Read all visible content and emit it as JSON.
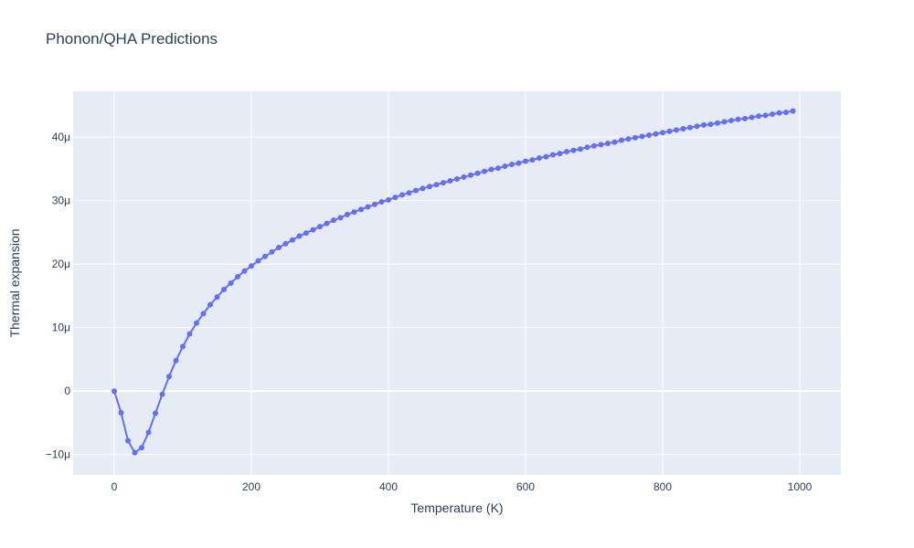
{
  "chart_data": {
    "type": "line",
    "title": "Phonon/QHA Predictions",
    "xlabel": "Temperature (K)",
    "ylabel": "Thermal expansion",
    "xlim": [
      -60,
      1060
    ],
    "ylim": [
      -1.32e-05,
      4.72e-05
    ],
    "x_ticks": [
      0,
      200,
      400,
      600,
      800,
      1000
    ],
    "x_tick_labels": [
      "0",
      "200",
      "400",
      "600",
      "800",
      "1000"
    ],
    "y_ticks": [
      -1e-05,
      0,
      1e-05,
      2e-05,
      3e-05,
      4e-05
    ],
    "y_tick_labels": [
      "−10μ",
      "0",
      "10μ",
      "20μ",
      "30μ",
      "40μ"
    ],
    "grid": true,
    "colors": {
      "line": "#636efa",
      "plot_bg": "#e5ecf6",
      "grid": "#ffffff",
      "text": "#2a3f5f"
    },
    "series": [
      {
        "mode": "lines+markers",
        "x": [
          0,
          10,
          20,
          30,
          40,
          50,
          60,
          70,
          80,
          90,
          100,
          110,
          120,
          130,
          140,
          150,
          160,
          170,
          180,
          190,
          200,
          210,
          220,
          230,
          240,
          250,
          260,
          270,
          280,
          290,
          300,
          310,
          320,
          330,
          340,
          350,
          360,
          370,
          380,
          390,
          400,
          410,
          420,
          430,
          440,
          450,
          460,
          470,
          480,
          490,
          500,
          510,
          520,
          530,
          540,
          550,
          560,
          570,
          580,
          590,
          600,
          610,
          620,
          630,
          640,
          650,
          660,
          670,
          680,
          690,
          700,
          710,
          720,
          730,
          740,
          750,
          760,
          770,
          780,
          790,
          800,
          810,
          820,
          830,
          840,
          850,
          860,
          870,
          880,
          890,
          900,
          910,
          920,
          930,
          940,
          950,
          960,
          970,
          980,
          990
        ],
        "y": [
          0,
          -3.4e-06,
          -7.8e-06,
          -9.7e-06,
          -8.9e-06,
          -6.5e-06,
          -3.5e-06,
          -5e-07,
          2.3e-06,
          4.8e-06,
          7e-06,
          9e-06,
          1.07e-05,
          1.22e-05,
          1.36e-05,
          1.48e-05,
          1.6e-05,
          1.7e-05,
          1.8e-05,
          1.89e-05,
          1.97e-05,
          2.05e-05,
          2.12e-05,
          2.19e-05,
          2.26e-05,
          2.32e-05,
          2.38e-05,
          2.44e-05,
          2.49e-05,
          2.54e-05,
          2.59e-05,
          2.64e-05,
          2.69e-05,
          2.73e-05,
          2.78e-05,
          2.82e-05,
          2.86e-05,
          2.9e-05,
          2.94e-05,
          2.98e-05,
          3.01e-05,
          3.05e-05,
          3.09e-05,
          3.12e-05,
          3.16e-05,
          3.19e-05,
          3.22e-05,
          3.25e-05,
          3.28e-05,
          3.31e-05,
          3.34e-05,
          3.37e-05,
          3.4e-05,
          3.43e-05,
          3.46e-05,
          3.49e-05,
          3.51e-05,
          3.54e-05,
          3.57e-05,
          3.59e-05,
          3.62e-05,
          3.64e-05,
          3.67e-05,
          3.69e-05,
          3.72e-05,
          3.74e-05,
          3.77e-05,
          3.79e-05,
          3.81e-05,
          3.84e-05,
          3.86e-05,
          3.88e-05,
          3.9e-05,
          3.92e-05,
          3.95e-05,
          3.97e-05,
          3.99e-05,
          4.01e-05,
          4.03e-05,
          4.05e-05,
          4.07e-05,
          4.09e-05,
          4.11e-05,
          4.13e-05,
          4.15e-05,
          4.17e-05,
          4.19e-05,
          4.2e-05,
          4.22e-05,
          4.24e-05,
          4.26e-05,
          4.28e-05,
          4.29e-05,
          4.31e-05,
          4.33e-05,
          4.34e-05,
          4.36e-05,
          4.38e-05,
          4.39e-05,
          4.41e-05
        ]
      }
    ]
  }
}
